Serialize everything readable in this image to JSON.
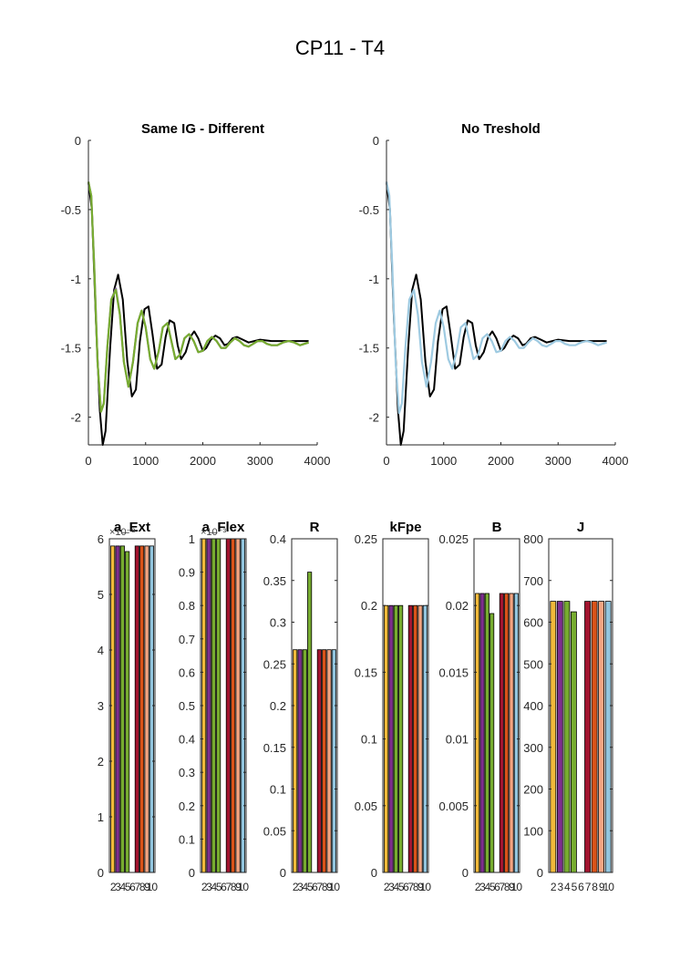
{
  "figure": {
    "suptitle": "CP11 - T4"
  },
  "chart_data": [
    {
      "type": "line",
      "title": "Same IG - Different",
      "xlabel": "",
      "ylabel": "",
      "xlim": [
        0,
        4000
      ],
      "ylim": [
        -2.2,
        0
      ],
      "xticks": [
        0,
        1000,
        2000,
        3000,
        4000
      ],
      "yticks": [
        0,
        -0.5,
        -1,
        -1.5,
        -2
      ],
      "series": [
        {
          "color": "#000000",
          "x": [
            0,
            60,
            130,
            200,
            250,
            300,
            380,
            450,
            520,
            600,
            680,
            760,
            830,
            900,
            980,
            1050,
            1120,
            1200,
            1280,
            1350,
            1420,
            1500,
            1560,
            1620,
            1700,
            1780,
            1850,
            1920,
            2000,
            2060,
            2140,
            2220,
            2300,
            2380,
            2440,
            2520,
            2600,
            2700,
            2800,
            2900,
            3000,
            3200,
            3400,
            3600,
            3850
          ],
          "y": [
            -0.3,
            -0.5,
            -1.3,
            -1.95,
            -2.2,
            -2.1,
            -1.5,
            -1.08,
            -0.97,
            -1.15,
            -1.6,
            -1.85,
            -1.8,
            -1.45,
            -1.22,
            -1.2,
            -1.4,
            -1.65,
            -1.62,
            -1.42,
            -1.3,
            -1.32,
            -1.48,
            -1.58,
            -1.53,
            -1.42,
            -1.38,
            -1.43,
            -1.52,
            -1.5,
            -1.44,
            -1.41,
            -1.43,
            -1.48,
            -1.47,
            -1.43,
            -1.42,
            -1.44,
            -1.46,
            -1.45,
            -1.44,
            -1.45,
            -1.45,
            -1.45,
            -1.45
          ]
        },
        {
          "color": "#8a6fa0",
          "x": [
            0,
            50,
            100,
            160,
            220,
            270,
            330,
            400,
            480,
            550,
            620,
            700,
            780,
            860,
            930,
            1000,
            1080,
            1150,
            1230,
            1300,
            1380,
            1450,
            1520,
            1600,
            1680,
            1760,
            1840,
            1920,
            2000,
            2080,
            2160,
            2240,
            2320,
            2400,
            2480,
            2560,
            2640,
            2720,
            2800,
            2880,
            2960,
            3040,
            3120,
            3200,
            3300,
            3400,
            3500,
            3600,
            3700,
            3850
          ],
          "y": [
            -0.3,
            -0.4,
            -0.9,
            -1.6,
            -1.96,
            -1.9,
            -1.5,
            -1.15,
            -1.07,
            -1.25,
            -1.6,
            -1.78,
            -1.6,
            -1.32,
            -1.23,
            -1.35,
            -1.58,
            -1.65,
            -1.52,
            -1.35,
            -1.32,
            -1.45,
            -1.58,
            -1.55,
            -1.43,
            -1.4,
            -1.45,
            -1.53,
            -1.52,
            -1.45,
            -1.42,
            -1.45,
            -1.5,
            -1.5,
            -1.46,
            -1.43,
            -1.45,
            -1.48,
            -1.49,
            -1.47,
            -1.45,
            -1.45,
            -1.47,
            -1.48,
            -1.48,
            -1.46,
            -1.45,
            -1.46,
            -1.48,
            -1.46
          ]
        },
        {
          "color": "#77ac30",
          "x": [
            0,
            50,
            100,
            160,
            220,
            270,
            330,
            400,
            480,
            550,
            620,
            700,
            780,
            860,
            930,
            1000,
            1080,
            1150,
            1230,
            1300,
            1380,
            1450,
            1520,
            1600,
            1680,
            1760,
            1840,
            1920,
            2000,
            2080,
            2160,
            2240,
            2320,
            2400,
            2480,
            2560,
            2640,
            2720,
            2800,
            2880,
            2960,
            3040,
            3120,
            3200,
            3300,
            3400,
            3500,
            3600,
            3700,
            3850
          ],
          "y": [
            -0.3,
            -0.4,
            -0.9,
            -1.6,
            -1.96,
            -1.9,
            -1.5,
            -1.15,
            -1.08,
            -1.26,
            -1.6,
            -1.78,
            -1.6,
            -1.32,
            -1.23,
            -1.35,
            -1.58,
            -1.65,
            -1.52,
            -1.35,
            -1.32,
            -1.45,
            -1.58,
            -1.55,
            -1.43,
            -1.4,
            -1.45,
            -1.53,
            -1.52,
            -1.45,
            -1.42,
            -1.45,
            -1.5,
            -1.5,
            -1.46,
            -1.43,
            -1.45,
            -1.48,
            -1.49,
            -1.47,
            -1.45,
            -1.45,
            -1.47,
            -1.48,
            -1.48,
            -1.46,
            -1.45,
            -1.46,
            -1.48,
            -1.46
          ]
        }
      ]
    },
    {
      "type": "line",
      "title": "No Treshold",
      "xlabel": "",
      "ylabel": "",
      "xlim": [
        0,
        4000
      ],
      "ylim": [
        -2.2,
        0
      ],
      "xticks": [
        0,
        1000,
        2000,
        3000,
        4000
      ],
      "yticks": [
        0,
        -0.5,
        -1,
        -1.5,
        -2
      ],
      "series": [
        {
          "color": "#000000",
          "x": [
            0,
            60,
            130,
            200,
            250,
            300,
            380,
            450,
            520,
            600,
            680,
            760,
            830,
            900,
            980,
            1050,
            1120,
            1200,
            1280,
            1350,
            1420,
            1500,
            1560,
            1620,
            1700,
            1780,
            1850,
            1920,
            2000,
            2060,
            2140,
            2220,
            2300,
            2380,
            2440,
            2520,
            2600,
            2700,
            2800,
            2900,
            3000,
            3200,
            3400,
            3600,
            3850
          ],
          "y": [
            -0.3,
            -0.5,
            -1.3,
            -1.95,
            -2.2,
            -2.1,
            -1.5,
            -1.08,
            -0.97,
            -1.15,
            -1.6,
            -1.85,
            -1.8,
            -1.45,
            -1.22,
            -1.2,
            -1.4,
            -1.65,
            -1.62,
            -1.42,
            -1.3,
            -1.32,
            -1.48,
            -1.58,
            -1.53,
            -1.42,
            -1.38,
            -1.43,
            -1.52,
            -1.5,
            -1.44,
            -1.41,
            -1.43,
            -1.48,
            -1.47,
            -1.43,
            -1.42,
            -1.44,
            -1.46,
            -1.45,
            -1.44,
            -1.45,
            -1.45,
            -1.45,
            -1.45
          ]
        },
        {
          "color": "#9ecae1",
          "x": [
            0,
            50,
            100,
            160,
            220,
            270,
            330,
            400,
            480,
            550,
            620,
            700,
            780,
            860,
            930,
            1000,
            1080,
            1150,
            1230,
            1300,
            1380,
            1450,
            1520,
            1600,
            1680,
            1760,
            1840,
            1920,
            2000,
            2080,
            2160,
            2240,
            2320,
            2400,
            2480,
            2560,
            2640,
            2720,
            2800,
            2880,
            2960,
            3040,
            3120,
            3200,
            3300,
            3400,
            3500,
            3600,
            3700,
            3850
          ],
          "y": [
            -0.3,
            -0.4,
            -0.9,
            -1.6,
            -1.97,
            -1.9,
            -1.5,
            -1.15,
            -1.08,
            -1.26,
            -1.6,
            -1.78,
            -1.6,
            -1.32,
            -1.23,
            -1.35,
            -1.58,
            -1.65,
            -1.52,
            -1.35,
            -1.32,
            -1.45,
            -1.58,
            -1.55,
            -1.43,
            -1.4,
            -1.45,
            -1.53,
            -1.52,
            -1.45,
            -1.42,
            -1.45,
            -1.5,
            -1.5,
            -1.46,
            -1.43,
            -1.45,
            -1.48,
            -1.49,
            -1.47,
            -1.45,
            -1.45,
            -1.47,
            -1.48,
            -1.48,
            -1.46,
            -1.45,
            -1.46,
            -1.48,
            -1.46
          ]
        }
      ]
    },
    {
      "type": "bar",
      "title": "a_Ext",
      "exponent_label": "×10⁻³",
      "categories": [
        "2",
        "3",
        "4",
        "5",
        "6",
        "7",
        "8",
        "9",
        "10"
      ],
      "values": [
        5.87,
        5.87,
        5.87,
        5.77,
        null,
        5.87,
        5.87,
        5.87,
        5.87
      ],
      "colors": [
        "#f0b93a",
        "#7e2f8e",
        "#77ac30",
        "#77ac30",
        "#ffffff",
        "#a2142f",
        "#d95319",
        "#f4a582",
        "#92c5de"
      ],
      "ylim": [
        0,
        6
      ],
      "yticks": [
        0,
        1,
        2,
        3,
        4,
        5,
        6
      ],
      "xticklabels": [
        "2",
        "3",
        "4",
        "5",
        "6",
        "7",
        "8",
        "9",
        "10"
      ]
    },
    {
      "type": "bar",
      "title": "a_Flex",
      "exponent_label": "×10⁻³",
      "categories": [
        "2",
        "3",
        "4",
        "5",
        "6",
        "7",
        "8",
        "9",
        "10"
      ],
      "values": [
        1,
        1,
        1,
        1,
        null,
        1,
        1,
        1,
        1
      ],
      "colors": [
        "#f0b93a",
        "#7e2f8e",
        "#77ac30",
        "#77ac30",
        "#ffffff",
        "#a2142f",
        "#d95319",
        "#f4a582",
        "#92c5de"
      ],
      "ylim": [
        0,
        1
      ],
      "yticks": [
        0,
        0.1,
        0.2,
        0.3,
        0.4,
        0.5,
        0.6,
        0.7,
        0.8,
        0.9,
        1
      ],
      "xticklabels": [
        "2",
        "3",
        "4",
        "5",
        "6",
        "7",
        "8",
        "9",
        "10"
      ]
    },
    {
      "type": "bar",
      "title": "R",
      "categories": [
        "2",
        "3",
        "4",
        "5",
        "6",
        "7",
        "8",
        "9",
        "10"
      ],
      "values": [
        0.267,
        0.267,
        0.267,
        0.36,
        null,
        0.267,
        0.267,
        0.267,
        0.267
      ],
      "colors": [
        "#f0b93a",
        "#7e2f8e",
        "#77ac30",
        "#77ac30",
        "#ffffff",
        "#a2142f",
        "#d95319",
        "#f4a582",
        "#92c5de"
      ],
      "ylim": [
        0,
        0.4
      ],
      "yticks": [
        0,
        0.05,
        0.1,
        0.15,
        0.2,
        0.25,
        0.3,
        0.35,
        0.4
      ],
      "xticklabels": [
        "2",
        "3",
        "4",
        "5",
        "6",
        "7",
        "8",
        "9",
        "10"
      ]
    },
    {
      "type": "bar",
      "title": "kFpe",
      "categories": [
        "2",
        "3",
        "4",
        "5",
        "6",
        "7",
        "8",
        "9",
        "10"
      ],
      "values": [
        0.2,
        0.2,
        0.2,
        0.2,
        null,
        0.2,
        0.2,
        0.2,
        0.2
      ],
      "colors": [
        "#f0b93a",
        "#7e2f8e",
        "#77ac30",
        "#77ac30",
        "#ffffff",
        "#a2142f",
        "#d95319",
        "#f4a582",
        "#92c5de"
      ],
      "ylim": [
        0,
        0.25
      ],
      "yticks": [
        0,
        0.05,
        0.1,
        0.15,
        0.2,
        0.25
      ],
      "xticklabels": [
        "2",
        "3",
        "4",
        "5",
        "6",
        "7",
        "8",
        "9",
        "10"
      ]
    },
    {
      "type": "bar",
      "title": "B",
      "categories": [
        "2",
        "3",
        "4",
        "5",
        "6",
        "7",
        "8",
        "9",
        "10"
      ],
      "values": [
        0.0209,
        0.0209,
        0.0209,
        0.0194,
        null,
        0.0209,
        0.0209,
        0.0209,
        0.0209
      ],
      "colors": [
        "#f0b93a",
        "#7e2f8e",
        "#77ac30",
        "#77ac30",
        "#ffffff",
        "#a2142f",
        "#d95319",
        "#f4a582",
        "#92c5de"
      ],
      "ylim": [
        0,
        0.025
      ],
      "yticks": [
        0,
        0.005,
        0.01,
        0.015,
        0.02,
        0.025
      ],
      "xticklabels": [
        "2",
        "3",
        "4",
        "5",
        "6",
        "7",
        "8",
        "9",
        "10"
      ]
    },
    {
      "type": "bar",
      "title": "J",
      "categories": [
        "2",
        "3",
        "4",
        "5",
        "6",
        "7",
        "8",
        "9",
        "10"
      ],
      "values": [
        650,
        650,
        650,
        625,
        null,
        650,
        650,
        650,
        650
      ],
      "colors": [
        "#f0b93a",
        "#7e2f8e",
        "#77ac30",
        "#77ac30",
        "#ffffff",
        "#a2142f",
        "#d95319",
        "#f4a582",
        "#92c5de"
      ],
      "ylim": [
        0,
        800
      ],
      "yticks": [
        0,
        100,
        200,
        300,
        400,
        500,
        600,
        700,
        800
      ],
      "xticklabels": [
        "2",
        "3",
        "4",
        "5",
        "6",
        "7",
        "8",
        "9",
        "10"
      ]
    }
  ]
}
